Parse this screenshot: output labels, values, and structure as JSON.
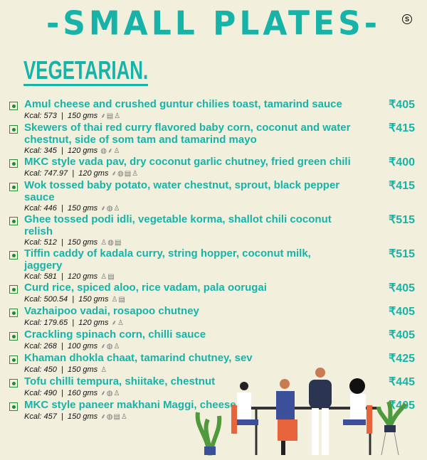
{
  "header": {
    "title": "-SMALL PLATES-",
    "badge": "S",
    "section": "VEGETARIAN."
  },
  "colors": {
    "accent": "#17b3a9",
    "background": "#f2efdc",
    "veg_mark": "#1f8a35"
  },
  "icon_glyphs": {
    "gluten": "⸙",
    "nuts": "◍",
    "dairy": "▤",
    "soy": "♙",
    "sesame": "◈"
  },
  "items": [
    {
      "name": "Amul cheese and crushed guntur chilies toast, tamarind sauce",
      "price": "₹405",
      "kcal": "Kcal: 573",
      "weight": "150 gms",
      "icons": [
        "gluten",
        "dairy",
        "soy"
      ]
    },
    {
      "name": "Skewers of thai red curry flavored baby corn, coconut and water chestnut, side of som tam and tamarind mayo",
      "price": "₹415",
      "kcal": "Kcal: 345",
      "weight": "120 gms",
      "icons": [
        "nuts",
        "gluten",
        "soy"
      ]
    },
    {
      "name": "MKC style vada pav, dry coconut garlic chutney, fried green chili",
      "price": "₹400",
      "kcal": "Kcal: 747.97",
      "weight": "120 gms",
      "icons": [
        "gluten",
        "nuts",
        "dairy",
        "soy"
      ]
    },
    {
      "name": "Wok tossed baby potato, water chestnut, sprout, black pepper sauce",
      "price": "₹415",
      "kcal": "Kcal: 446",
      "weight": "150 gms",
      "icons": [
        "gluten",
        "nuts",
        "soy"
      ]
    },
    {
      "name": "Ghee tossed podi idli, vegetable korma, shallot chili coconut relish",
      "price": "₹515",
      "kcal": "Kcal: 512",
      "weight": "150 gms",
      "icons": [
        "soy",
        "nuts",
        "dairy"
      ]
    },
    {
      "name": "Tiffin caddy of kadala curry, string hopper, coconut milk, jaggery",
      "price": "₹515",
      "kcal": "Kcal: 581",
      "weight": "120 gms",
      "icons": [
        "soy",
        "dairy"
      ]
    },
    {
      "name": "Curd rice, spiced aloo, rice vadam, pala oorugai",
      "price": "₹405",
      "kcal": "Kcal: 500.54",
      "weight": "150 gms",
      "icons": [
        "soy",
        "dairy"
      ]
    },
    {
      "name": "Vazhaipoo vadai, rosapoo chutney",
      "price": "₹405",
      "kcal": "Kcal: 179.65",
      "weight": "120 gms",
      "icons": [
        "gluten",
        "soy"
      ]
    },
    {
      "name": "Crackling spinach corn, chilli sauce",
      "price": "₹405",
      "kcal": "Kcal: 268",
      "weight": "100 gms",
      "icons": [
        "gluten",
        "nuts",
        "soy"
      ]
    },
    {
      "name": "Khaman dhokla chaat, tamarind chutney, sev",
      "price": "₹425",
      "kcal": "Kcal: 450",
      "weight": "150 gms",
      "icons": [
        "soy"
      ]
    },
    {
      "name": "Tofu chilli tempura, shiitake, chestnut",
      "price": "₹445",
      "kcal": "Kcal: 490",
      "weight": "160 gms",
      "icons": [
        "gluten",
        "nuts",
        "soy"
      ]
    },
    {
      "name": "MKC style paneer makhani Maggi, cheese",
      "price": "₹405",
      "kcal": "Kcal: 457",
      "weight": "150 gms",
      "icons": [
        "gluten",
        "nuts",
        "dairy",
        "soy"
      ]
    }
  ]
}
